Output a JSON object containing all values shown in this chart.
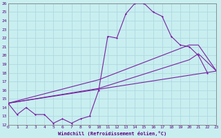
{
  "bg_color": "#c8eef0",
  "grid_color": "#b0d8e0",
  "line_color": "#7b1fa2",
  "xmin": 0,
  "xmax": 23,
  "ymin": 12,
  "ymax": 26,
  "xlabel": "Windchill (Refroidissement éolien,°C)",
  "series1_x": [
    0,
    1,
    2,
    3,
    4,
    5,
    6,
    7,
    8,
    9,
    10,
    11,
    12,
    13,
    14,
    15,
    16,
    17,
    18,
    19,
    20,
    21,
    22
  ],
  "series1_y": [
    14.5,
    13.2,
    14.0,
    13.2,
    13.2,
    12.2,
    12.7,
    12.2,
    12.7,
    13.0,
    16.0,
    22.2,
    22.0,
    24.8,
    26.0,
    26.0,
    25.0,
    24.5,
    22.2,
    21.2,
    21.0,
    20.0,
    18.0
  ],
  "series2_x": [
    0,
    10,
    20,
    21,
    23
  ],
  "series2_y": [
    14.5,
    17.2,
    21.2,
    21.2,
    18.2
  ],
  "series3_x": [
    0,
    10,
    20,
    21,
    23
  ],
  "series3_y": [
    14.5,
    16.2,
    19.5,
    20.2,
    18.2
  ],
  "series4_x": [
    0,
    23
  ],
  "series4_y": [
    14.5,
    18.2
  ]
}
